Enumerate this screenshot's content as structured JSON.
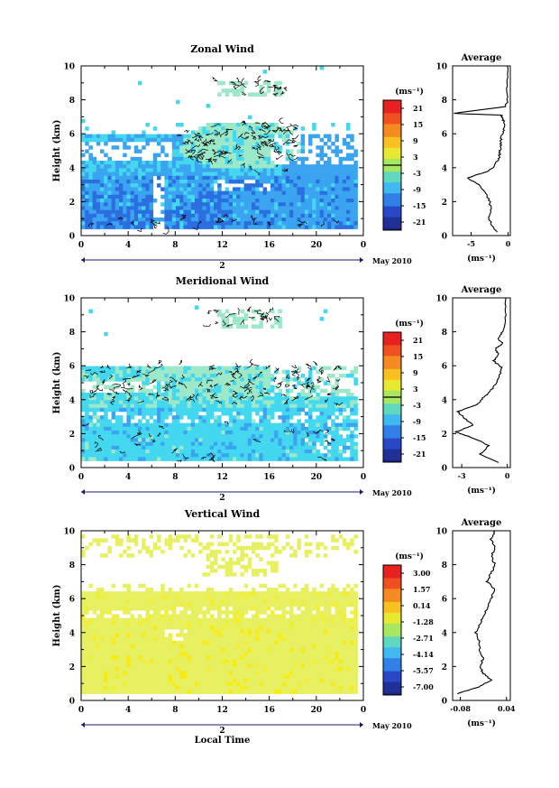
{
  "date_label": "May 2010",
  "units_label": "(ms⁻¹)",
  "avg_title": "Average",
  "chart_data": [
    {
      "type": "heatmap",
      "title": "Zonal Wind",
      "ylabel": "Height (km)",
      "xlabel": "",
      "xticks": [
        "0",
        "4",
        "8",
        "12",
        "16",
        "20",
        "0"
      ],
      "xlim": [
        0,
        24
      ],
      "yticks": [
        "0",
        "2",
        "4",
        "6",
        "8",
        "10"
      ],
      "ylim": [
        0,
        10
      ],
      "day_label": "2",
      "colorbar_ticks": [
        "21",
        "15",
        "9",
        "3",
        "-3",
        "-9",
        "-15",
        "-21"
      ],
      "profile": {
        "xticks": [
          "-5",
          "0"
        ],
        "xlim": [
          -7.5,
          0.3
        ],
        "y": [
          0.2,
          0.6,
          1.0,
          1.5,
          2.0,
          2.5,
          3.0,
          3.4,
          3.8,
          4.2,
          4.6,
          5.0,
          5.4,
          5.8,
          6.2,
          6.6,
          6.9,
          7.1,
          7.2,
          7.6,
          8.0,
          9.0,
          10.0
        ],
        "x": [
          -1.5,
          -2.2,
          -2.6,
          -2.3,
          -2.5,
          -3.0,
          -4.0,
          -5.5,
          -2.6,
          -1.7,
          -1.2,
          -1.1,
          -1.0,
          -0.9,
          -0.6,
          -0.5,
          -0.7,
          -1.0,
          -7.4,
          -0.3,
          -0.1,
          -0.1,
          -0.1
        ]
      }
    },
    {
      "type": "heatmap",
      "title": "Meridional Wind",
      "ylabel": "Height (km)",
      "xlabel": "",
      "xticks": [
        "0",
        "4",
        "8",
        "12",
        "16",
        "20",
        "0"
      ],
      "xlim": [
        0,
        24
      ],
      "yticks": [
        "0",
        "2",
        "4",
        "6",
        "8",
        "10"
      ],
      "ylim": [
        0,
        10
      ],
      "day_label": "2",
      "colorbar_ticks": [
        "21",
        "15",
        "9",
        "3",
        "-3",
        "-9",
        "-15",
        "-21"
      ],
      "profile": {
        "xticks": [
          "-3",
          "0"
        ],
        "xlim": [
          -3.6,
          0.2
        ],
        "y": [
          0.3,
          0.8,
          1.3,
          1.8,
          2.1,
          2.5,
          2.9,
          3.3,
          3.7,
          4.1,
          4.5,
          5.0,
          5.4,
          5.9,
          6.3,
          6.7,
          7.0,
          7.3,
          7.6,
          8.0,
          9.0,
          10.0
        ],
        "x": [
          -0.6,
          -1.8,
          -1.2,
          -2.4,
          -3.4,
          -2.2,
          -2.8,
          -3.3,
          -2.0,
          -1.6,
          -1.1,
          -0.7,
          -0.5,
          -0.4,
          -0.9,
          -0.6,
          -0.8,
          -0.3,
          -0.6,
          -0.3,
          -0.1,
          -0.1
        ]
      }
    },
    {
      "type": "heatmap",
      "title": "Vertical Wind",
      "ylabel": "Height (km)",
      "xlabel": "Local Time",
      "xticks": [
        "0",
        "4",
        "8",
        "12",
        "16",
        "20",
        "0"
      ],
      "xlim": [
        0,
        24
      ],
      "yticks": [
        "0",
        "2",
        "4",
        "6",
        "8",
        "10"
      ],
      "ylim": [
        0,
        10
      ],
      "day_label": "2",
      "colorbar_ticks": [
        "3.00",
        "1.57",
        "0.14",
        "-1.28",
        "-2.71",
        "-4.14",
        "-5.57",
        "-7.00"
      ],
      "profile": {
        "xticks": [
          "-0.08",
          "0.04"
        ],
        "xlim": [
          -0.1,
          0.05
        ],
        "y": [
          0.4,
          0.8,
          1.2,
          1.6,
          2.0,
          2.5,
          3.0,
          3.5,
          4.0,
          4.5,
          5.0,
          5.5,
          6.0,
          6.5,
          7.0,
          7.5,
          8.0,
          8.5,
          9.0,
          9.5,
          10.0
        ],
        "x": [
          -0.09,
          -0.03,
          0.0,
          -0.02,
          -0.03,
          -0.02,
          -0.03,
          -0.03,
          -0.04,
          -0.03,
          -0.02,
          -0.01,
          0.0,
          0.01,
          -0.01,
          0.0,
          0.01,
          0.0,
          0.01,
          0.0,
          0.01
        ]
      }
    }
  ]
}
